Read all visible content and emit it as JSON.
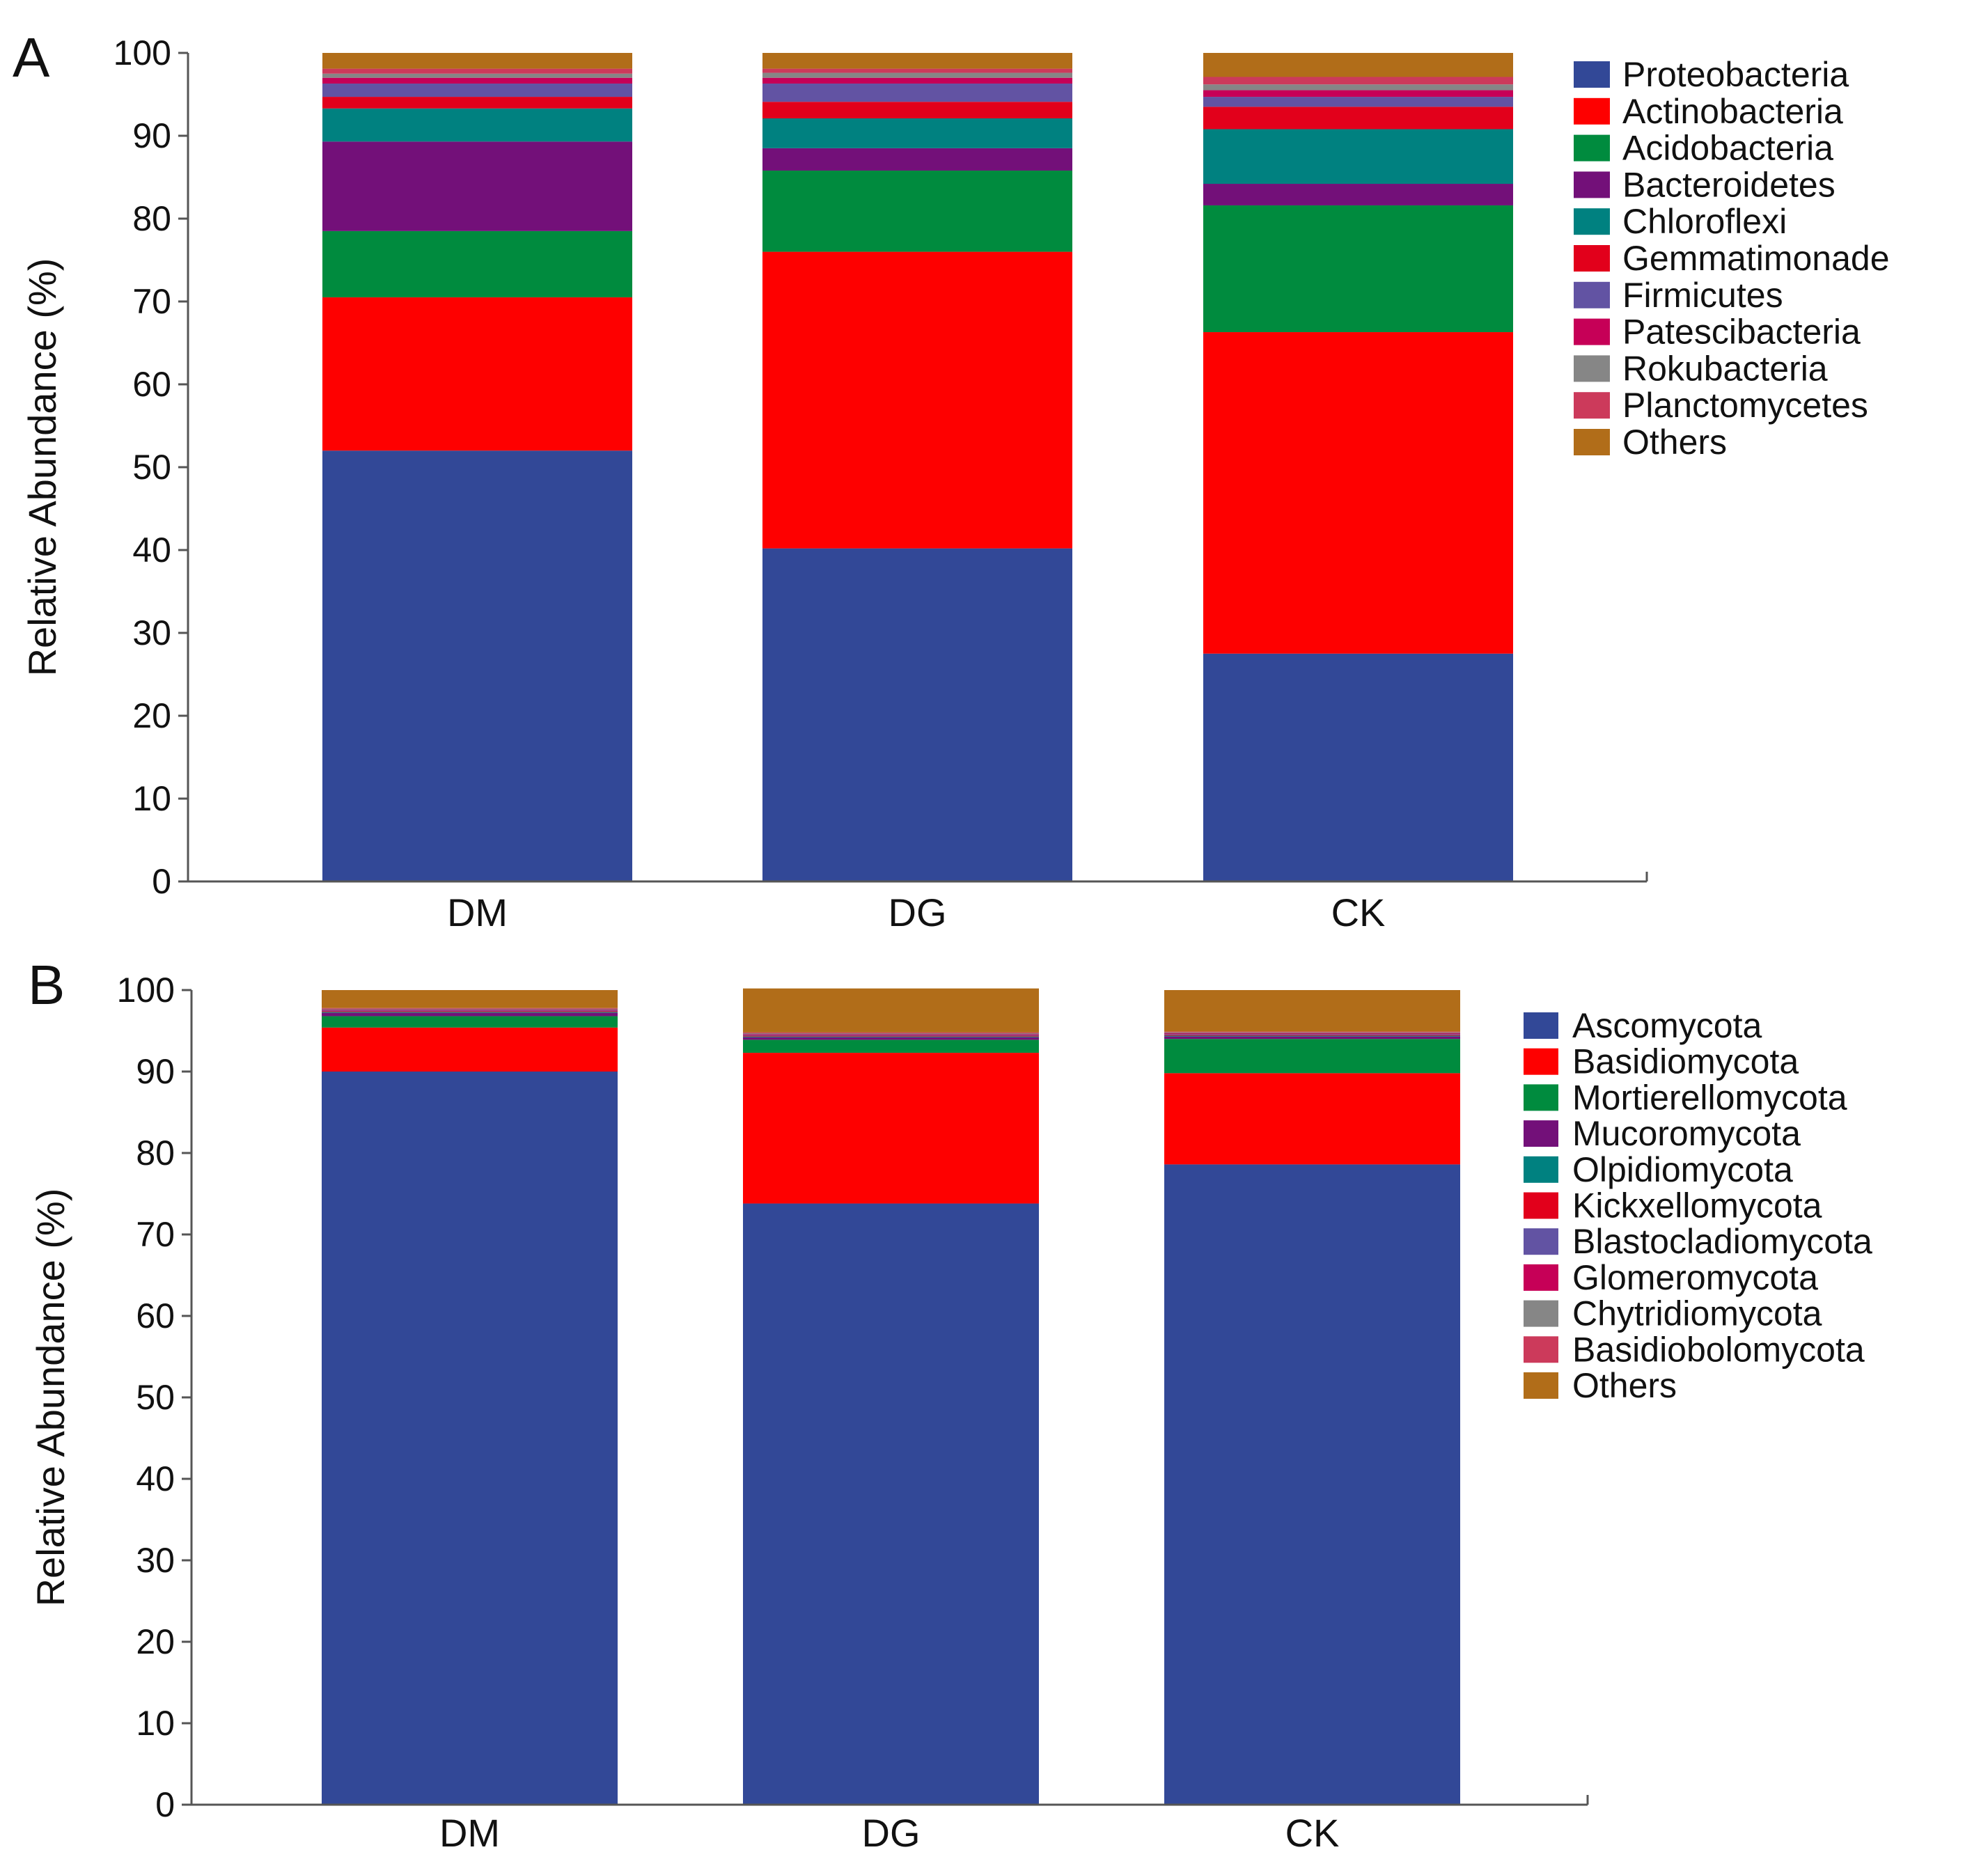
{
  "chart_data": [
    {
      "panel": "A",
      "type": "bar",
      "stacked": true,
      "ylabel": "Relative Abundance (%)",
      "ylim": [
        0,
        100
      ],
      "yticks": [
        0,
        10,
        20,
        30,
        40,
        50,
        60,
        70,
        80,
        90,
        100
      ],
      "categories": [
        "DM",
        "DG",
        "CK"
      ],
      "legend_position": "right",
      "series": [
        {
          "name": "Proteobacteria",
          "color": "#324897",
          "values": [
            52.0,
            40.2,
            27.5
          ]
        },
        {
          "name": "Actinobacteria",
          "color": "#fe0000",
          "values": [
            18.5,
            35.8,
            38.8
          ]
        },
        {
          "name": "Acidobacteria",
          "color": "#008b3e",
          "values": [
            8.0,
            9.8,
            15.3
          ]
        },
        {
          "name": "Bacteroidetes",
          "color": "#731079",
          "values": [
            10.8,
            2.7,
            2.6
          ]
        },
        {
          "name": "Chloroflexi",
          "color": "#008180",
          "values": [
            4.0,
            3.6,
            6.6
          ]
        },
        {
          "name": "Gemmatimonade",
          "color": "#e2001b",
          "values": [
            1.4,
            2.0,
            2.7
          ]
        },
        {
          "name": "Firmicutes",
          "color": "#6253a3",
          "values": [
            1.6,
            2.2,
            1.2
          ]
        },
        {
          "name": "Patescibacteria",
          "color": "#c60057",
          "values": [
            0.7,
            0.7,
            0.8
          ]
        },
        {
          "name": "Rokubacteria",
          "color": "#868686",
          "values": [
            0.5,
            0.6,
            0.7
          ]
        },
        {
          "name": "Planctomycetes",
          "color": "#cc3a5b",
          "values": [
            0.6,
            0.5,
            0.9
          ]
        },
        {
          "name": "Others",
          "color": "#b16d19",
          "values": [
            1.9,
            1.9,
            2.9
          ]
        }
      ]
    },
    {
      "panel": "B",
      "type": "bar",
      "stacked": true,
      "ylabel": "Relative Abundance (%)",
      "ylim": [
        0,
        100
      ],
      "yticks": [
        0,
        10,
        20,
        30,
        40,
        50,
        60,
        70,
        80,
        90,
        100
      ],
      "categories": [
        "DM",
        "DG",
        "CK"
      ],
      "legend_position": "right",
      "series": [
        {
          "name": "Ascomycota",
          "color": "#324897",
          "values": [
            90.0,
            73.8,
            78.6
          ]
        },
        {
          "name": "Basidiomycota",
          "color": "#fe0000",
          "values": [
            5.4,
            18.5,
            11.2
          ]
        },
        {
          "name": "Mortierellomycota",
          "color": "#008b3e",
          "values": [
            1.4,
            1.6,
            4.2
          ]
        },
        {
          "name": "Mucoromycota",
          "color": "#731079",
          "values": [
            0.4,
            0.3,
            0.3
          ]
        },
        {
          "name": "Olpidiomycota",
          "color": "#008180",
          "values": [
            0.1,
            0.1,
            0.1
          ]
        },
        {
          "name": "Kickxellomycota",
          "color": "#e2001b",
          "values": [
            0.1,
            0.1,
            0.1
          ]
        },
        {
          "name": "Blastocladiomycota",
          "color": "#6253a3",
          "values": [
            0.1,
            0.1,
            0.1
          ]
        },
        {
          "name": "Glomeromycota",
          "color": "#c60057",
          "values": [
            0.1,
            0.1,
            0.1
          ]
        },
        {
          "name": "Chytridiomycota",
          "color": "#868686",
          "values": [
            0.1,
            0.1,
            0.1
          ]
        },
        {
          "name": "Basidiobolomycota",
          "color": "#cc3a5b",
          "values": [
            0.1,
            0.1,
            0.1
          ]
        },
        {
          "name": "Others",
          "color": "#b16d19",
          "values": [
            2.2,
            5.4,
            5.1
          ]
        }
      ]
    }
  ]
}
